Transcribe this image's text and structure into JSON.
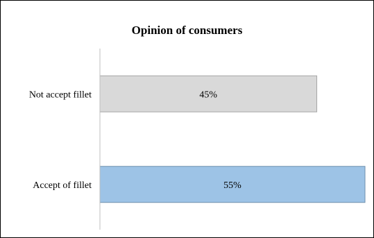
{
  "chart_data": {
    "type": "bar",
    "orientation": "horizontal",
    "title": "Opinion of consumers",
    "categories": [
      "Not accept fillet",
      "Accept of fillet"
    ],
    "values": [
      45,
      55
    ],
    "value_labels": [
      "45%",
      "55%"
    ],
    "unit": "%",
    "xlim": [
      0,
      55
    ],
    "grid": false,
    "legend": "none",
    "bar_colors": [
      "#d9d9d9",
      "#9dc3e6"
    ],
    "bar_border_colors": [
      "#a6a6a6",
      "#6f8fad"
    ]
  }
}
